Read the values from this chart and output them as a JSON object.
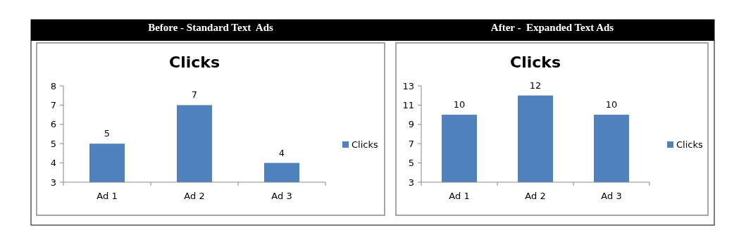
{
  "chart_data": [
    {
      "type": "bar",
      "title": "Clicks",
      "annotations": [
        "Before - Standard Text  Ads"
      ],
      "categories": [
        "Ad 1",
        "Ad 2",
        "Ad 3"
      ],
      "series": [
        {
          "name": "Clicks",
          "color": "#4f81bd",
          "values": [
            5,
            7,
            4
          ]
        }
      ],
      "ylim": [
        3,
        8
      ],
      "yticks": [
        3,
        4,
        5,
        6,
        7,
        8
      ],
      "grid": false,
      "legend": "right",
      "data_labels": true
    },
    {
      "type": "bar",
      "title": "Clicks",
      "annotations": [
        "After -  Expanded Text Ads"
      ],
      "categories": [
        "Ad 1",
        "Ad 2",
        "Ad 3"
      ],
      "series": [
        {
          "name": "Clicks",
          "color": "#4f81bd",
          "values": [
            10,
            12,
            10
          ]
        }
      ],
      "ylim": [
        3,
        13
      ],
      "yticks": [
        3,
        5,
        7,
        9,
        11,
        13
      ],
      "grid": false,
      "legend": "right",
      "data_labels": true
    }
  ]
}
